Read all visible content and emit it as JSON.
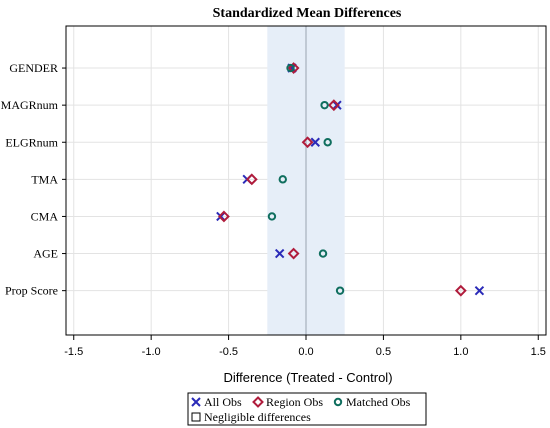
{
  "chart_data": {
    "type": "scatter",
    "title": "Standardized Mean Differences",
    "xlabel": "Difference (Treated - Control)",
    "ylabel": "",
    "categories": [
      "GENDER",
      "MAGRnum",
      "ELGRnum",
      "TMA",
      "CMA",
      "AGE",
      "Prop Score"
    ],
    "xlim": [
      -1.55,
      1.55
    ],
    "xticks": [
      -1.5,
      -1.0,
      -0.5,
      0.0,
      0.5,
      1.0,
      1.5
    ],
    "xtick_labels": [
      "-1.5",
      "-1.0",
      "-0.5",
      "0.0",
      "0.5",
      "1.0",
      "1.5"
    ],
    "grid": true,
    "reference_line": 0,
    "negligible_band": [
      -0.25,
      0.25
    ],
    "legend_placement": "bottom",
    "series": [
      {
        "name": "All Obs",
        "marker": "x",
        "color": "#2a2ab8",
        "values": [
          -0.09,
          0.2,
          0.06,
          -0.38,
          -0.55,
          -0.17,
          1.12
        ]
      },
      {
        "name": "Region Obs",
        "marker": "diamond",
        "color": "#b01c3c",
        "values": [
          -0.08,
          0.18,
          0.01,
          -0.35,
          -0.53,
          -0.08,
          1.0
        ]
      },
      {
        "name": "Matched Obs",
        "marker": "circle",
        "color": "#0f6e5e",
        "values": [
          -0.1,
          0.12,
          0.14,
          -0.15,
          -0.22,
          0.11,
          0.22
        ]
      }
    ],
    "legend_extra": {
      "name": "Negligible differences",
      "marker": "square"
    }
  },
  "colors": {
    "band": "#e6eef8",
    "grid": "#e3e3e3",
    "refline": "#9aa4b0",
    "axis": "#000000"
  }
}
